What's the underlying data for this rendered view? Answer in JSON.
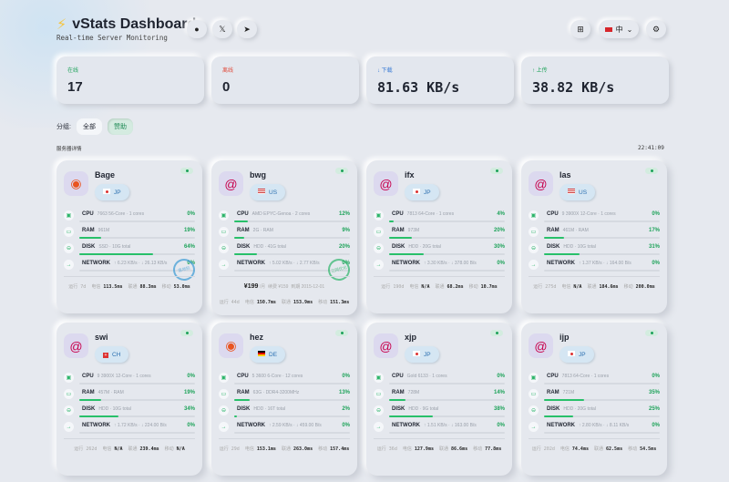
{
  "header": {
    "icon": "lightning-icon",
    "title": "vStats Dashboard",
    "subtitle": "Real-time Server Monitoring",
    "language": "中"
  },
  "summary": [
    {
      "label": "在线",
      "value": "17",
      "color": "#1ea35a"
    },
    {
      "label": "离线",
      "value": "0",
      "color": "#e04a3a"
    },
    {
      "label": "↓ 下载",
      "value": "81.63 KB/s",
      "color": "#3a7bd5"
    },
    {
      "label": "↑ 上传",
      "value": "38.82 KB/s",
      "color": "#1ea35a"
    }
  ],
  "groups": {
    "label": "分组:",
    "items": [
      "全部",
      "赞助"
    ],
    "active": 1
  },
  "section_title": "服务器详情",
  "clock": "22:41:09",
  "footer_labels": {
    "uptime": "运行",
    "ct": "电信",
    "cu": "联通",
    "cm": "移动"
  },
  "servers": [
    {
      "name": "Bage",
      "os": "ubuntu",
      "country": "JP",
      "cpu": {
        "detail": "7663 56-Core · 1 cores",
        "pct": "0%"
      },
      "ram": {
        "detail": "961M",
        "pct": "19%"
      },
      "disk": {
        "detail": "SSD · 10G total",
        "pct": "64%"
      },
      "net": {
        "detail": "↑ 6.23 KB/s · ↓ 26.13 KB/s",
        "pct": "0%"
      },
      "uptime": "7d",
      "ct": "113.5ms",
      "cu": "88.3ms",
      "cm": "53.0ms",
      "stamp": "落地机",
      "stamp_color": "#3a9bd5"
    },
    {
      "name": "bwg",
      "os": "debian",
      "country": "US",
      "cpu": {
        "detail": "AMD EPYC-Genoa · 2 cores",
        "pct": "12%"
      },
      "ram": {
        "detail": "2G · RAM",
        "pct": "9%"
      },
      "disk": {
        "detail": "HDD · 41G total",
        "pct": "20%"
      },
      "net": {
        "detail": "↑ 5.02 KB/s · ↓ 2.77 KB/s",
        "pct": "0%"
      },
      "uptime": "44d",
      "ct": "150.7ms",
      "cu": "153.9ms",
      "cm": "151.3ms",
      "stamp": "三网优化",
      "stamp_color": "#2db56a",
      "price": "¥199",
      "price_unit": "/月",
      "renew": "续费 ¥159",
      "expire": "到期 2015-12-01"
    },
    {
      "name": "ifx",
      "os": "debian",
      "country": "JP",
      "cpu": {
        "detail": "7813 64-Core · 1 cores",
        "pct": "4%"
      },
      "ram": {
        "detail": "973M",
        "pct": "20%"
      },
      "disk": {
        "detail": "HDD · 20G total",
        "pct": "30%"
      },
      "net": {
        "detail": "↑ 3.30 KB/s · ↓ 378.00 B/s",
        "pct": "0%"
      },
      "uptime": "190d",
      "ct": "N/A",
      "cu": "68.2ms",
      "cm": "10.7ms"
    },
    {
      "name": "las",
      "os": "debian",
      "country": "US",
      "cpu": {
        "detail": "9 3900X 12-Core · 1 cores",
        "pct": "0%"
      },
      "ram": {
        "detail": "461M · RAM",
        "pct": "17%"
      },
      "disk": {
        "detail": "HDD · 10G total",
        "pct": "31%"
      },
      "net": {
        "detail": "↑ 1.37 KB/s · ↓ 164.00 B/s",
        "pct": "0%"
      },
      "uptime": "275d",
      "ct": "N/A",
      "cu": "184.6ms",
      "cm": "200.0ms"
    },
    {
      "name": "swi",
      "os": "debian",
      "country": "CH",
      "cpu": {
        "detail": "9 3900X 12-Core · 1 cores",
        "pct": "0%"
      },
      "ram": {
        "detail": "457M · RAM",
        "pct": "19%"
      },
      "disk": {
        "detail": "HDD · 10G total",
        "pct": "34%"
      },
      "net": {
        "detail": "↑ 1.72 KB/s · ↓ 224.00 B/s",
        "pct": "0%"
      },
      "uptime": "262d",
      "ct": "N/A",
      "cu": "239.4ms",
      "cm": "N/A"
    },
    {
      "name": "hez",
      "os": "ubuntu",
      "country": "DE",
      "cpu": {
        "detail": "5 3600 6-Core · 12 cores",
        "pct": "0%"
      },
      "ram": {
        "detail": "63G · DDR4-3200MHz",
        "pct": "13%"
      },
      "disk": {
        "detail": "HDD · 16T total",
        "pct": "2%"
      },
      "net": {
        "detail": "↑ 2.59 KB/s · ↓ 459.00 B/s",
        "pct": "0%"
      },
      "uptime": "29d",
      "ct": "153.1ms",
      "cu": "263.0ms",
      "cm": "157.4ms"
    },
    {
      "name": "xjp",
      "os": "debian",
      "country": "JP",
      "cpu": {
        "detail": "Gold 6133 · 1 cores",
        "pct": "0%"
      },
      "ram": {
        "detail": "728M",
        "pct": "14%"
      },
      "disk": {
        "detail": "HDD · 9G total",
        "pct": "38%"
      },
      "net": {
        "detail": "↑ 1.51 KB/s · ↓ 163.00 B/s",
        "pct": "0%"
      },
      "uptime": "36d",
      "ct": "127.9ms",
      "cu": "86.6ms",
      "cm": "77.8ms"
    },
    {
      "name": "ijp",
      "os": "debian",
      "country": "JP",
      "cpu": {
        "detail": "7813 64-Core · 1 cores",
        "pct": "0%"
      },
      "ram": {
        "detail": "721M",
        "pct": "35%"
      },
      "disk": {
        "detail": "HDD · 20G total",
        "pct": "25%"
      },
      "net": {
        "detail": "↑ 2.80 KB/s · ↓ 8.11 KB/s",
        "pct": "0%"
      },
      "uptime": "202d",
      "ct": "74.4ms",
      "cu": "62.5ms",
      "cm": "54.5ms"
    }
  ],
  "metric_labels": {
    "cpu": "CPU",
    "ram": "RAM",
    "disk": "DISK",
    "net": "NETWORK"
  }
}
